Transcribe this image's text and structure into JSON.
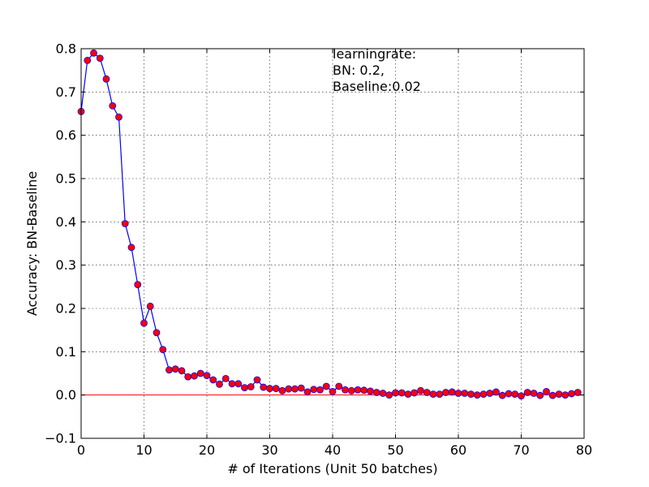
{
  "chart_data": {
    "type": "line",
    "xlabel": "# of Iterations (Unit 50 batches)",
    "ylabel": "Accuracy: BN-Baseline",
    "xlim": [
      0,
      80
    ],
    "ylim": [
      -0.1,
      0.8
    ],
    "xticks": [
      "0",
      "10",
      "20",
      "30",
      "40",
      "50",
      "60",
      "70",
      "80"
    ],
    "yticks": [
      "−0.1",
      "0.0",
      "0.1",
      "0.2",
      "0.3",
      "0.4",
      "0.5",
      "0.6",
      "0.7",
      "0.8"
    ],
    "grid": true,
    "annotation": {
      "lines": [
        "learningrate:",
        " BN: 0.2,",
        " Baseline:0.02"
      ],
      "x": 40,
      "y": 0.8
    },
    "reference_line": {
      "y": 0.0,
      "color": "#ff0000"
    },
    "series": [
      {
        "line_color": "#0000ff",
        "marker_color": "#ff0000",
        "x": [
          0,
          1,
          2,
          3,
          4,
          5,
          6,
          7,
          8,
          9,
          10,
          11,
          12,
          13,
          14,
          15,
          16,
          17,
          18,
          19,
          20,
          21,
          22,
          23,
          24,
          25,
          26,
          27,
          28,
          29,
          30,
          31,
          32,
          33,
          34,
          35,
          36,
          37,
          38,
          39,
          40,
          41,
          42,
          43,
          44,
          45,
          46,
          47,
          48,
          49,
          50,
          51,
          52,
          53,
          54,
          55,
          56,
          57,
          58,
          59,
          60,
          61,
          62,
          63,
          64,
          65,
          66,
          67,
          68,
          69,
          70,
          71,
          72,
          73,
          74,
          75,
          76,
          77,
          78,
          79
        ],
        "values": [
          0.655,
          0.773,
          0.79,
          0.778,
          0.73,
          0.668,
          0.642,
          0.396,
          0.341,
          0.255,
          0.166,
          0.205,
          0.144,
          0.105,
          0.058,
          0.06,
          0.056,
          0.042,
          0.044,
          0.05,
          0.045,
          0.035,
          0.025,
          0.038,
          0.026,
          0.026,
          0.017,
          0.019,
          0.035,
          0.018,
          0.015,
          0.015,
          0.01,
          0.014,
          0.014,
          0.016,
          0.007,
          0.013,
          0.012,
          0.02,
          0.008,
          0.02,
          0.012,
          0.01,
          0.012,
          0.011,
          0.009,
          0.006,
          0.004,
          0.0,
          0.005,
          0.005,
          0.002,
          0.005,
          0.01,
          0.006,
          0.002,
          0.002,
          0.006,
          0.007,
          0.004,
          0.004,
          0.002,
          0.0,
          0.002,
          0.004,
          0.007,
          -0.001,
          0.003,
          0.002,
          -0.002,
          0.006,
          0.004,
          -0.001,
          0.008,
          -0.001,
          0.002,
          0.0,
          0.003,
          0.006
        ]
      }
    ]
  }
}
